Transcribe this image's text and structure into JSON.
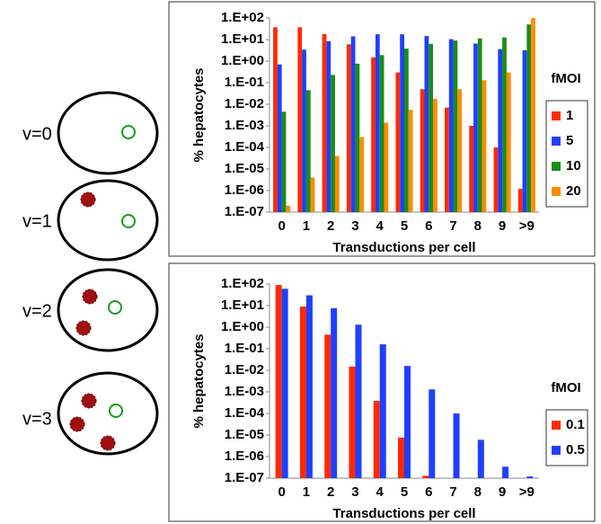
{
  "diagram": {
    "labels": [
      "v=0",
      "v=1",
      "v=2",
      "v=3"
    ]
  },
  "chart_data": [
    {
      "type": "bar",
      "log_scale": true,
      "y_label": "% hepatocytes",
      "x_label": "Transductions per cell",
      "legend_title": "fMOI",
      "categories": [
        "0",
        "1",
        "2",
        "3",
        "4",
        "5",
        "6",
        "7",
        "8",
        "9",
        ">9"
      ],
      "series": [
        {
          "name": "1",
          "color": "#ff2a00",
          "values": [
            37,
            37,
            18,
            6,
            1.5,
            0.3,
            0.05,
            0.007,
            0.001,
            0.0001,
            1.2e-06
          ]
        },
        {
          "name": "5",
          "color": "#1f3fff",
          "values": [
            0.7,
            3.4,
            8.4,
            14,
            17.5,
            17.5,
            14.6,
            10.4,
            6.5,
            3.6,
            3.2
          ]
        },
        {
          "name": "10",
          "color": "#1a8c1a",
          "values": [
            0.0045,
            0.045,
            0.23,
            0.76,
            1.9,
            3.8,
            6.3,
            9,
            11.3,
            12.5,
            50
          ]
        },
        {
          "name": "20",
          "color": "#ff8c00",
          "values": [
            2e-07,
            4e-06,
            4e-05,
            0.0003,
            0.0014,
            0.0055,
            0.018,
            0.05,
            0.13,
            0.3,
            100
          ]
        }
      ],
      "ylim": [
        1e-07,
        100
      ],
      "yticks": [
        {
          "value": 1e-07,
          "label": "1.E-07"
        },
        {
          "value": 1e-06,
          "label": "1.E-06"
        },
        {
          "value": 1e-05,
          "label": "1.E-05"
        },
        {
          "value": 0.0001,
          "label": "1.E-04"
        },
        {
          "value": 0.001,
          "label": "1.E-03"
        },
        {
          "value": 0.01,
          "label": "1.E-02"
        },
        {
          "value": 0.1,
          "label": "1.E-01"
        },
        {
          "value": 1,
          "label": "1.E+00"
        },
        {
          "value": 10,
          "label": "1.E+01"
        },
        {
          "value": 100,
          "label": "1.E+02"
        }
      ]
    },
    {
      "type": "bar",
      "log_scale": true,
      "y_label": "% hepatocytes",
      "x_label": "Transductions per cell",
      "legend_title": "fMOI",
      "categories": [
        "0",
        "1",
        "2",
        "3",
        "4",
        "5",
        "6",
        "7",
        "8",
        "9",
        ">9"
      ],
      "series": [
        {
          "name": "0.1",
          "color": "#ff2a00",
          "values": [
            90,
            9,
            0.45,
            0.015,
            0.00038,
            7.6e-06,
            1.3e-07,
            null,
            null,
            null,
            null
          ]
        },
        {
          "name": "0.5",
          "color": "#1f3fff",
          "values": [
            60,
            30,
            7.6,
            1.3,
            0.16,
            0.016,
            0.0013,
            0.0001,
            6e-06,
            3.4e-07,
            1.2e-07
          ]
        }
      ],
      "ylim": [
        1e-07,
        100
      ],
      "yticks": [
        {
          "value": 1e-07,
          "label": "1.E-07"
        },
        {
          "value": 1e-06,
          "label": "1.E-06"
        },
        {
          "value": 1e-05,
          "label": "1.E-05"
        },
        {
          "value": 0.0001,
          "label": "1.E-04"
        },
        {
          "value": 0.001,
          "label": "1.E-03"
        },
        {
          "value": 0.01,
          "label": "1.E-02"
        },
        {
          "value": 0.1,
          "label": "1.E-01"
        },
        {
          "value": 1,
          "label": "1.E+00"
        },
        {
          "value": 10,
          "label": "1.E+01"
        },
        {
          "value": 100,
          "label": "1.E+02"
        }
      ]
    }
  ]
}
